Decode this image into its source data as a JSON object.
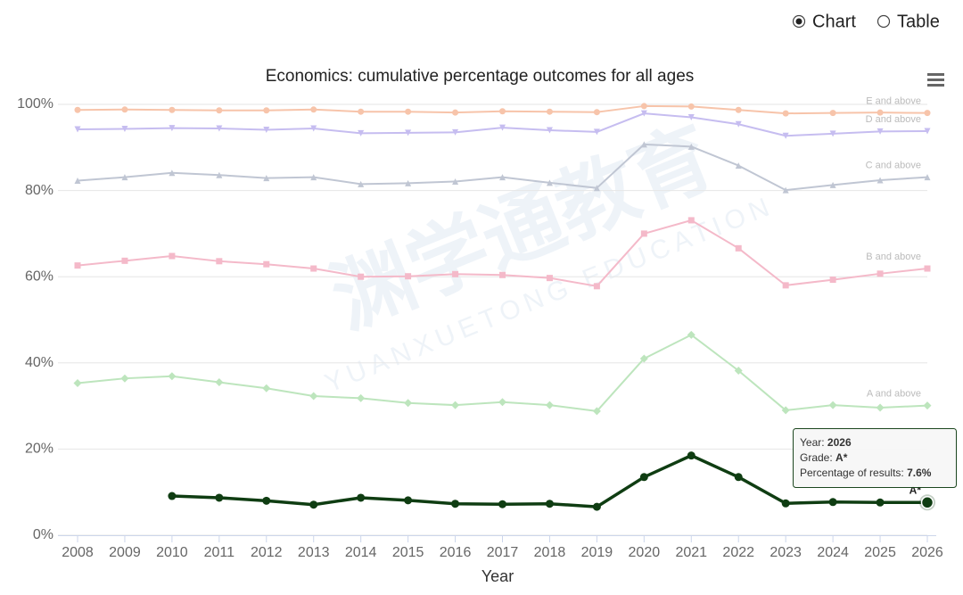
{
  "controls": {
    "options": [
      "Chart",
      "Table"
    ],
    "selected": 0
  },
  "watermark": {
    "brand": "渊学通教育",
    "latin": "YUANXUETONG EDUCATION"
  },
  "chart_data": {
    "type": "line",
    "title": "Economics: cumulative percentage outcomes for all ages",
    "x_label": "Year",
    "x": [
      2008,
      2009,
      2010,
      2011,
      2012,
      2013,
      2014,
      2015,
      2016,
      2017,
      2018,
      2019,
      2020,
      2021,
      2022,
      2023,
      2024,
      2025,
      2026
    ],
    "xlim": [
      2008,
      2026
    ],
    "xticks": [
      2008,
      2009,
      2010,
      2011,
      2012,
      2013,
      2014,
      2015,
      2016,
      2017,
      2018,
      2019,
      2020,
      2021,
      2022,
      2023,
      2024,
      2025,
      2026
    ],
    "ylim": [
      0,
      100
    ],
    "yticks": [
      {
        "value": 0,
        "label": "0%"
      },
      {
        "value": 20,
        "label": "20%"
      },
      {
        "value": 40,
        "label": "40%"
      },
      {
        "value": 60,
        "label": "60%"
      },
      {
        "value": 80,
        "label": "80%"
      },
      {
        "value": 100,
        "label": "100%"
      }
    ],
    "grid": true,
    "series": [
      {
        "name": "E and above",
        "color": "#f7c4aa",
        "marker": "circle",
        "values": [
          98.7,
          98.8,
          98.7,
          98.6,
          98.6,
          98.8,
          98.3,
          98.3,
          98.1,
          98.4,
          98.3,
          98.2,
          99.6,
          99.5,
          98.7,
          97.9,
          98.0,
          98.1,
          98.0
        ]
      },
      {
        "name": "D and above",
        "color": "#c6bdf0",
        "marker": "triangle-down",
        "values": [
          94.2,
          94.3,
          94.5,
          94.4,
          94.1,
          94.4,
          93.3,
          93.4,
          93.5,
          94.6,
          94.0,
          93.6,
          97.9,
          97.0,
          95.4,
          92.7,
          93.2,
          93.7,
          93.8
        ]
      },
      {
        "name": "C and above",
        "color": "#c0c6d3",
        "marker": "triangle",
        "values": [
          82.3,
          83.1,
          84.1,
          83.6,
          82.9,
          83.1,
          81.5,
          81.7,
          82.1,
          83.1,
          81.8,
          80.6,
          90.7,
          90.2,
          85.8,
          80.1,
          81.3,
          82.4,
          83.1
        ]
      },
      {
        "name": "B and above",
        "color": "#f4b9c9",
        "marker": "square",
        "values": [
          62.6,
          63.7,
          64.8,
          63.6,
          62.9,
          61.9,
          60.0,
          60.1,
          60.6,
          60.4,
          59.7,
          57.8,
          70.0,
          73.1,
          66.6,
          58.0,
          59.3,
          60.7,
          61.9
        ]
      },
      {
        "name": "A and above",
        "color": "#bde5bd",
        "marker": "diamond",
        "values": [
          35.3,
          36.4,
          36.9,
          35.5,
          34.1,
          32.3,
          31.8,
          30.7,
          30.2,
          30.9,
          30.2,
          28.8,
          41.0,
          46.5,
          38.2,
          29.0,
          30.2,
          29.6,
          30.1
        ]
      },
      {
        "name": "A*",
        "color": "#0f3d12",
        "marker": "circle",
        "values": [
          null,
          null,
          9.1,
          8.7,
          8.0,
          7.1,
          8.7,
          8.1,
          7.3,
          7.2,
          7.3,
          6.6,
          13.5,
          18.5,
          13.5,
          7.4,
          7.7,
          7.6,
          7.6
        ]
      }
    ],
    "tooltip": {
      "rows": [
        {
          "label": "Year: ",
          "value": "2026"
        },
        {
          "label": "Grade: ",
          "value": "A*"
        },
        {
          "label": "Percentage of results: ",
          "value": "7.6%"
        }
      ]
    }
  }
}
